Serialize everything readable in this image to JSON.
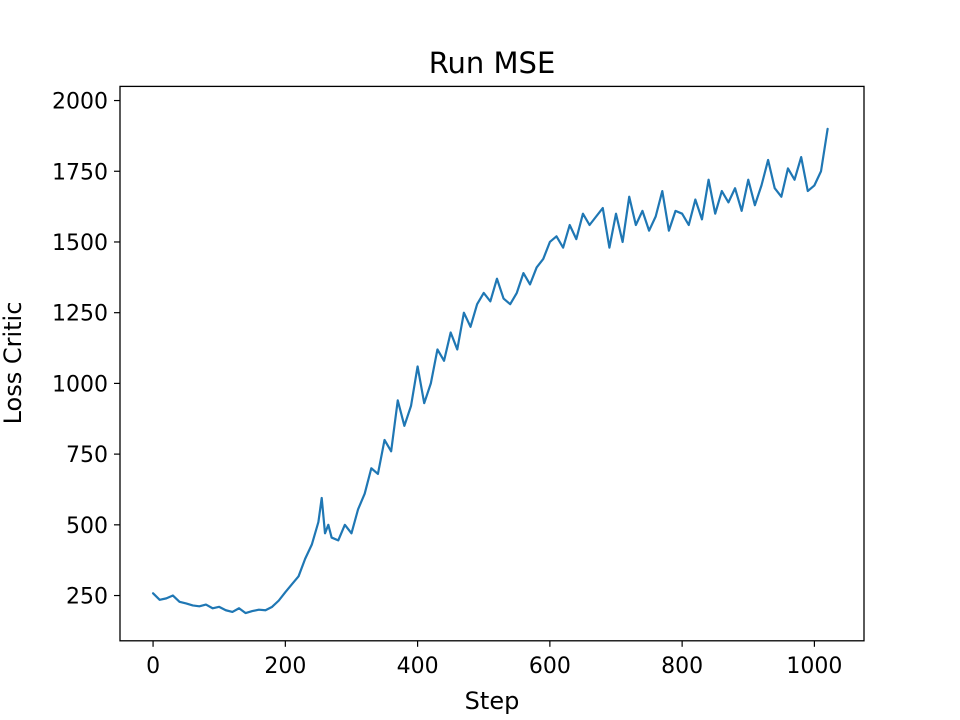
{
  "chart_data": {
    "type": "line",
    "title": "Run MSE",
    "xlabel": "Step",
    "ylabel": "Loss Critic",
    "xlim": [
      -50,
      1075
    ],
    "ylim": [
      90,
      2050
    ],
    "xticks": [
      0,
      200,
      400,
      600,
      800,
      1000
    ],
    "yticks": [
      250,
      500,
      750,
      1000,
      1250,
      1500,
      1750,
      2000
    ],
    "grid": false,
    "series": [
      {
        "color": "#1f77b4",
        "x": [
          0,
          10,
          20,
          30,
          40,
          50,
          60,
          70,
          80,
          90,
          100,
          110,
          120,
          130,
          140,
          150,
          160,
          170,
          180,
          190,
          200,
          210,
          220,
          230,
          240,
          250,
          255,
          260,
          265,
          270,
          280,
          290,
          300,
          310,
          320,
          330,
          340,
          350,
          360,
          370,
          380,
          390,
          400,
          410,
          420,
          430,
          440,
          450,
          460,
          470,
          480,
          490,
          500,
          510,
          520,
          530,
          540,
          550,
          560,
          570,
          580,
          590,
          600,
          610,
          620,
          630,
          640,
          650,
          660,
          670,
          680,
          690,
          700,
          710,
          720,
          730,
          740,
          750,
          760,
          770,
          780,
          790,
          800,
          810,
          820,
          830,
          840,
          850,
          860,
          870,
          880,
          890,
          900,
          910,
          920,
          930,
          940,
          950,
          960,
          970,
          980,
          990,
          1000,
          1010,
          1020
        ],
        "values": [
          258,
          235,
          240,
          250,
          228,
          222,
          215,
          212,
          218,
          205,
          210,
          198,
          192,
          205,
          188,
          195,
          200,
          198,
          210,
          232,
          262,
          290,
          318,
          380,
          430,
          510,
          595,
          470,
          500,
          455,
          445,
          500,
          470,
          555,
          610,
          700,
          680,
          800,
          760,
          940,
          850,
          920,
          1060,
          930,
          1000,
          1120,
          1080,
          1180,
          1120,
          1250,
          1200,
          1280,
          1320,
          1290,
          1370,
          1300,
          1280,
          1320,
          1390,
          1350,
          1410,
          1440,
          1500,
          1520,
          1480,
          1560,
          1510,
          1600,
          1560,
          1590,
          1620,
          1480,
          1600,
          1500,
          1660,
          1560,
          1610,
          1540,
          1590,
          1680,
          1540,
          1610,
          1600,
          1560,
          1650,
          1580,
          1720,
          1600,
          1680,
          1640,
          1690,
          1610,
          1720,
          1630,
          1700,
          1790,
          1690,
          1660,
          1760,
          1720,
          1800,
          1680,
          1700,
          1750,
          1900
        ]
      }
    ]
  }
}
